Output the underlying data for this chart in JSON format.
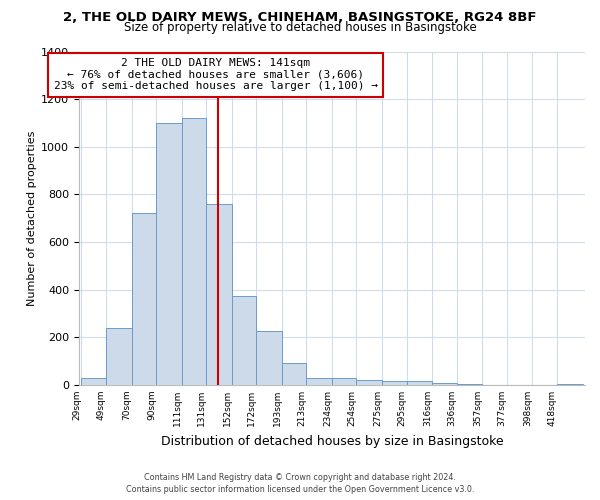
{
  "title": "2, THE OLD DAIRY MEWS, CHINEHAM, BASINGSTOKE, RG24 8BF",
  "subtitle": "Size of property relative to detached houses in Basingstoke",
  "xlabel": "Distribution of detached houses by size in Basingstoke",
  "ylabel": "Number of detached properties",
  "bar_edges": [
    29,
    49,
    70,
    90,
    111,
    131,
    152,
    172,
    193,
    213,
    234,
    254,
    275,
    295,
    316,
    336,
    357,
    377,
    398,
    418,
    439
  ],
  "bar_heights": [
    30,
    238,
    720,
    1100,
    1120,
    760,
    375,
    228,
    90,
    28,
    28,
    20,
    15,
    15,
    10,
    5,
    0,
    0,
    0,
    2
  ],
  "bar_color": "#cddaea",
  "bar_edge_color": "#6b9cc9",
  "property_line_x": 141,
  "property_line_color": "#cc0000",
  "ylim": [
    0,
    1400
  ],
  "yticks": [
    0,
    200,
    400,
    600,
    800,
    1000,
    1200,
    1400
  ],
  "annotation_title": "2 THE OLD DAIRY MEWS: 141sqm",
  "annotation_line1": "← 76% of detached houses are smaller (3,606)",
  "annotation_line2": "23% of semi-detached houses are larger (1,100) →",
  "annotation_box_color": "#ffffff",
  "annotation_border_color": "#cc0000",
  "footer1": "Contains HM Land Registry data © Crown copyright and database right 2024.",
  "footer2": "Contains public sector information licensed under the Open Government Licence v3.0.",
  "background_color": "#ffffff",
  "grid_color": "#d0dcea",
  "title_fontsize": 9.5,
  "subtitle_fontsize": 8.5,
  "ylabel_fontsize": 8,
  "xlabel_fontsize": 9,
  "ytick_fontsize": 8,
  "xtick_fontsize": 6.5,
  "annotation_fontsize": 8,
  "footer_fontsize": 5.8
}
